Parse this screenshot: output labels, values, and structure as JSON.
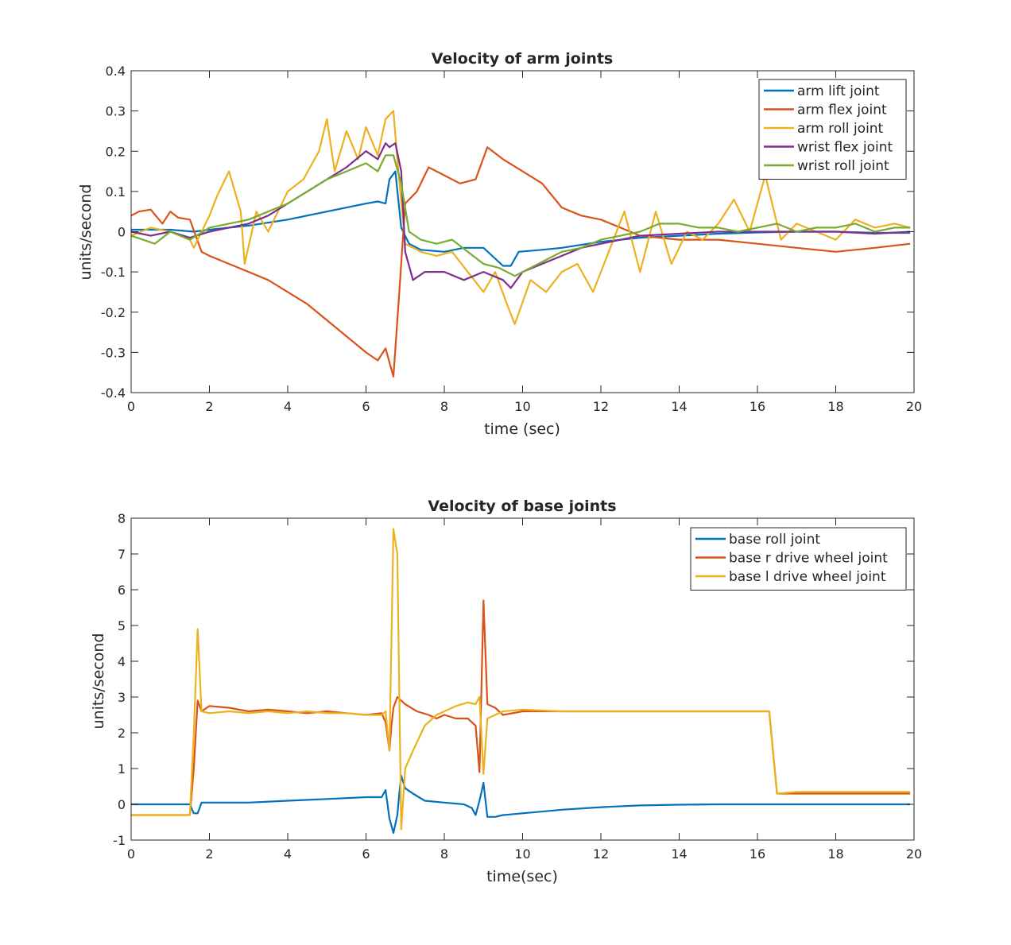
{
  "chart_data": [
    {
      "type": "line",
      "title": "Velocity of arm joints",
      "xlabel": "time (sec)",
      "ylabel": "units/second",
      "xlim": [
        0,
        20
      ],
      "ylim": [
        -0.4,
        0.4
      ],
      "xticks": [
        "0",
        "2",
        "4",
        "6",
        "8",
        "10",
        "12",
        "14",
        "16",
        "18",
        "20"
      ],
      "yticks": [
        "-0.4",
        "-0.3",
        "-0.2",
        "-0.1",
        "0",
        "0.1",
        "0.2",
        "0.3",
        "0.4"
      ],
      "legend_location": "top-right",
      "grid": false,
      "series": [
        {
          "name": "arm lift joint",
          "color": "#0072BD",
          "x": [
            0,
            1,
            1.6,
            2,
            3,
            4,
            5,
            6,
            6.3,
            6.5,
            6.6,
            6.75,
            6.9,
            7.1,
            7.4,
            8,
            8.5,
            9,
            9.5,
            9.7,
            9.9,
            10.5,
            11,
            12,
            13,
            14,
            15,
            16,
            17,
            18,
            19,
            19.9
          ],
          "y": [
            0.005,
            0.005,
            0.0,
            0.005,
            0.015,
            0.03,
            0.05,
            0.07,
            0.075,
            0.07,
            0.13,
            0.15,
            0.01,
            -0.03,
            -0.045,
            -0.05,
            -0.04,
            -0.04,
            -0.085,
            -0.085,
            -0.05,
            -0.045,
            -0.04,
            -0.025,
            -0.015,
            -0.01,
            -0.005,
            -0.002,
            0.0,
            0.0,
            -0.003,
            -0.003
          ]
        },
        {
          "name": "arm flex joint",
          "color": "#D95319",
          "x": [
            0,
            0.2,
            0.5,
            0.8,
            1.0,
            1.2,
            1.5,
            1.8,
            2.0,
            2.5,
            3.0,
            3.5,
            4.0,
            4.5,
            5.0,
            5.5,
            6.0,
            6.3,
            6.5,
            6.7,
            6.85,
            7.0,
            7.3,
            7.6,
            8.0,
            8.4,
            8.8,
            9.1,
            9.5,
            10.0,
            10.5,
            11.0,
            11.5,
            12.0,
            12.5,
            13.0,
            14.0,
            15.0,
            16.0,
            17.0,
            18.0,
            19.0,
            19.9
          ],
          "y": [
            0.04,
            0.05,
            0.055,
            0.02,
            0.05,
            0.035,
            0.03,
            -0.05,
            -0.06,
            -0.08,
            -0.1,
            -0.12,
            -0.15,
            -0.18,
            -0.22,
            -0.26,
            -0.3,
            -0.32,
            -0.29,
            -0.36,
            -0.15,
            0.07,
            0.1,
            0.16,
            0.14,
            0.12,
            0.13,
            0.21,
            0.18,
            0.15,
            0.12,
            0.06,
            0.04,
            0.03,
            0.01,
            -0.01,
            -0.02,
            -0.02,
            -0.03,
            -0.04,
            -0.05,
            -0.04,
            -0.03
          ]
        },
        {
          "name": "arm roll joint",
          "color": "#EDB120",
          "x": [
            0,
            0.5,
            1.0,
            1.5,
            1.6,
            2.0,
            2.2,
            2.5,
            2.8,
            2.9,
            3.2,
            3.5,
            4.0,
            4.4,
            4.8,
            5.0,
            5.2,
            5.5,
            5.8,
            6.0,
            6.3,
            6.5,
            6.7,
            6.8,
            7.0,
            7.4,
            7.8,
            8.2,
            8.6,
            9.0,
            9.3,
            9.6,
            9.8,
            10.2,
            10.6,
            11.0,
            11.4,
            11.8,
            12.2,
            12.6,
            13.0,
            13.4,
            13.8,
            14.2,
            14.6,
            15.0,
            15.4,
            15.8,
            16.2,
            16.6,
            17.0,
            17.5,
            18.0,
            18.5,
            19.0,
            19.5,
            19.9
          ],
          "y": [
            -0.01,
            0.01,
            0.0,
            -0.02,
            -0.04,
            0.04,
            0.09,
            0.15,
            0.05,
            -0.08,
            0.05,
            0.0,
            0.1,
            0.13,
            0.2,
            0.28,
            0.15,
            0.25,
            0.18,
            0.26,
            0.19,
            0.28,
            0.3,
            0.18,
            -0.03,
            -0.05,
            -0.06,
            -0.05,
            -0.1,
            -0.15,
            -0.1,
            -0.18,
            -0.23,
            -0.12,
            -0.15,
            -0.1,
            -0.08,
            -0.15,
            -0.05,
            0.05,
            -0.1,
            0.05,
            -0.08,
            0.0,
            -0.02,
            0.02,
            0.08,
            0.0,
            0.14,
            -0.02,
            0.02,
            0.0,
            -0.02,
            0.03,
            0.01,
            0.02,
            0.01
          ]
        },
        {
          "name": "wrist flex joint",
          "color": "#7E2F8E",
          "x": [
            0,
            0.5,
            1.0,
            1.5,
            2.0,
            2.5,
            3.0,
            3.5,
            4.0,
            4.5,
            5.0,
            5.5,
            6.0,
            6.3,
            6.5,
            6.6,
            6.75,
            6.9,
            7.0,
            7.2,
            7.5,
            8.0,
            8.5,
            9.0,
            9.5,
            9.7,
            10.0,
            10.5,
            11.0,
            11.5,
            12.0,
            13.0,
            14.0,
            15.0,
            16.0,
            17.0,
            18.0,
            19.0,
            19.9
          ],
          "y": [
            0.0,
            -0.01,
            0.0,
            -0.015,
            0.0,
            0.01,
            0.02,
            0.04,
            0.07,
            0.1,
            0.13,
            0.16,
            0.2,
            0.18,
            0.22,
            0.21,
            0.22,
            0.15,
            -0.05,
            -0.12,
            -0.1,
            -0.1,
            -0.12,
            -0.1,
            -0.12,
            -0.14,
            -0.1,
            -0.08,
            -0.06,
            -0.04,
            -0.03,
            -0.01,
            -0.005,
            0.0,
            0.0,
            0.0,
            0.0,
            -0.005,
            0.0
          ]
        },
        {
          "name": "wrist roll joint",
          "color": "#77AC30",
          "x": [
            0,
            0.3,
            0.6,
            1.0,
            1.5,
            2.0,
            2.5,
            3.0,
            3.5,
            4.0,
            4.5,
            5.0,
            5.5,
            6.0,
            6.3,
            6.5,
            6.7,
            6.9,
            7.1,
            7.4,
            7.8,
            8.2,
            8.6,
            9.0,
            9.4,
            9.8,
            10.2,
            10.6,
            11.0,
            11.5,
            12.0,
            12.5,
            13.0,
            13.5,
            14.0,
            14.5,
            15.0,
            15.5,
            16.0,
            16.5,
            17.0,
            17.5,
            18.0,
            18.5,
            19.0,
            19.5,
            19.9
          ],
          "y": [
            -0.01,
            -0.02,
            -0.03,
            0.0,
            -0.02,
            0.01,
            0.02,
            0.03,
            0.05,
            0.07,
            0.1,
            0.13,
            0.15,
            0.17,
            0.15,
            0.19,
            0.19,
            0.12,
            0.0,
            -0.02,
            -0.03,
            -0.02,
            -0.05,
            -0.08,
            -0.09,
            -0.11,
            -0.09,
            -0.07,
            -0.05,
            -0.04,
            -0.02,
            -0.01,
            0.0,
            0.02,
            0.02,
            0.01,
            0.01,
            0.0,
            0.01,
            0.02,
            0.0,
            0.01,
            0.01,
            0.02,
            0.0,
            0.01,
            0.01
          ]
        }
      ]
    },
    {
      "type": "line",
      "title": "Velocity of base joints",
      "xlabel": "time(sec)",
      "ylabel": "units/second",
      "xlim": [
        0,
        20
      ],
      "ylim": [
        -1,
        8
      ],
      "xticks": [
        "0",
        "2",
        "4",
        "6",
        "8",
        "10",
        "12",
        "14",
        "16",
        "18",
        "20"
      ],
      "yticks": [
        "-1",
        "0",
        "1",
        "2",
        "3",
        "4",
        "5",
        "6",
        "7",
        "8"
      ],
      "legend_location": "top-right",
      "grid": false,
      "series": [
        {
          "name": "base roll joint",
          "color": "#0072BD",
          "x": [
            0,
            1.5,
            1.6,
            1.7,
            1.8,
            2.0,
            3.0,
            4.0,
            5.0,
            6.0,
            6.4,
            6.5,
            6.6,
            6.7,
            6.8,
            6.85,
            6.9,
            7.0,
            7.2,
            7.5,
            8.0,
            8.5,
            8.7,
            8.8,
            8.9,
            9.0,
            9.1,
            9.3,
            9.5,
            10.0,
            11.0,
            12.0,
            13.0,
            14.0,
            15.0,
            16.0,
            17.0,
            18.0,
            19.0,
            19.9
          ],
          "y": [
            0.0,
            0.0,
            -0.25,
            -0.25,
            0.05,
            0.05,
            0.05,
            0.1,
            0.15,
            0.2,
            0.2,
            0.4,
            -0.4,
            -0.8,
            -0.3,
            0.3,
            0.8,
            0.45,
            0.3,
            0.1,
            0.05,
            0.0,
            -0.1,
            -0.3,
            0.1,
            0.6,
            -0.35,
            -0.35,
            -0.3,
            -0.25,
            -0.15,
            -0.08,
            -0.03,
            -0.01,
            0.0,
            0.0,
            0.0,
            0.0,
            0.0,
            0.0
          ]
        },
        {
          "name": "base r drive wheel joint",
          "color": "#D95319",
          "x": [
            0,
            1.5,
            1.6,
            1.7,
            1.8,
            2.0,
            2.5,
            3.0,
            3.5,
            4.0,
            4.5,
            5.0,
            5.5,
            6.0,
            6.4,
            6.5,
            6.6,
            6.65,
            6.7,
            6.8,
            6.9,
            7.0,
            7.3,
            7.6,
            7.8,
            8.0,
            8.3,
            8.6,
            8.8,
            8.9,
            9.0,
            9.1,
            9.3,
            9.5,
            10.0,
            11.0,
            12.0,
            13.0,
            14.0,
            15.0,
            16.0,
            16.3,
            16.5,
            17.0,
            18.0,
            19.0,
            19.9
          ],
          "y": [
            -0.3,
            -0.3,
            1.0,
            2.9,
            2.6,
            2.75,
            2.7,
            2.6,
            2.65,
            2.6,
            2.55,
            2.6,
            2.55,
            2.5,
            2.55,
            2.3,
            1.5,
            2.2,
            2.7,
            3.0,
            2.9,
            2.8,
            2.6,
            2.5,
            2.4,
            2.5,
            2.4,
            2.4,
            2.2,
            0.9,
            5.7,
            2.8,
            2.7,
            2.5,
            2.6,
            2.6,
            2.6,
            2.6,
            2.6,
            2.6,
            2.6,
            2.6,
            0.3,
            0.3,
            0.3,
            0.3,
            0.3
          ]
        },
        {
          "name": "base l drive wheel joint",
          "color": "#EDB120",
          "x": [
            0,
            1.5,
            1.6,
            1.7,
            1.8,
            2.0,
            2.5,
            3.0,
            3.5,
            4.0,
            4.5,
            5.0,
            5.5,
            6.0,
            6.4,
            6.5,
            6.6,
            6.7,
            6.8,
            6.9,
            7.0,
            7.2,
            7.5,
            7.8,
            8.0,
            8.3,
            8.6,
            8.8,
            8.9,
            9.0,
            9.1,
            9.3,
            9.5,
            10.0,
            11.0,
            12.0,
            13.0,
            14.0,
            15.0,
            16.0,
            16.3,
            16.5,
            17.0,
            18.0,
            19.0,
            19.9
          ],
          "y": [
            -0.3,
            -0.3,
            2.0,
            4.9,
            2.6,
            2.55,
            2.6,
            2.55,
            2.6,
            2.55,
            2.6,
            2.55,
            2.55,
            2.5,
            2.5,
            2.6,
            1.5,
            7.7,
            7.0,
            -0.7,
            1.0,
            1.5,
            2.2,
            2.5,
            2.6,
            2.75,
            2.85,
            2.8,
            3.0,
            0.85,
            2.4,
            2.5,
            2.6,
            2.65,
            2.6,
            2.6,
            2.6,
            2.6,
            2.6,
            2.6,
            2.6,
            0.3,
            0.35,
            0.35,
            0.35,
            0.35
          ]
        }
      ]
    }
  ]
}
